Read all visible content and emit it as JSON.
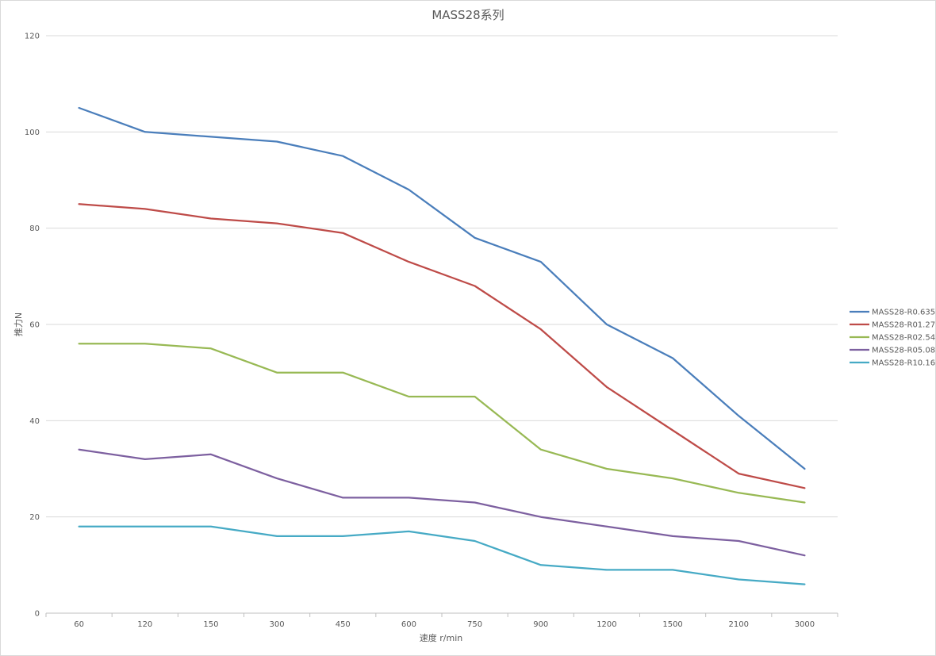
{
  "chart_data": {
    "type": "line",
    "title": "MASS28系列",
    "xlabel": "速度 r/min",
    "ylabel": "推力N",
    "categories": [
      "60",
      "120",
      "150",
      "300",
      "450",
      "600",
      "750",
      "900",
      "1200",
      "1500",
      "2100",
      "3000"
    ],
    "ylim": [
      0,
      120
    ],
    "yticks": [
      "0",
      "20",
      "40",
      "60",
      "80",
      "100",
      "120"
    ],
    "grid": "horizontal",
    "legend_position": "right",
    "series": [
      {
        "name": "MASS28-R0.635",
        "color": "#4a7ebb",
        "values": [
          105,
          100,
          99,
          98,
          95,
          88,
          78,
          73,
          60,
          53,
          41,
          30
        ]
      },
      {
        "name": "MASS28-R01.27",
        "color": "#be4b48",
        "values": [
          85,
          84,
          82,
          81,
          79,
          73,
          68,
          59,
          47,
          38,
          29,
          26
        ]
      },
      {
        "name": "MASS28-R02.54",
        "color": "#98b954",
        "values": [
          56,
          56,
          55,
          50,
          50,
          45,
          45,
          34,
          30,
          28,
          25,
          23
        ]
      },
      {
        "name": "MASS28-R05.08",
        "color": "#7d60a0",
        "values": [
          34,
          32,
          33,
          28,
          24,
          24,
          23,
          20,
          18,
          16,
          15,
          12
        ]
      },
      {
        "name": "MASS28-R10.16",
        "color": "#46aac5",
        "values": [
          18,
          18,
          18,
          16,
          16,
          17,
          15,
          10,
          9,
          9,
          7,
          6
        ]
      }
    ]
  }
}
